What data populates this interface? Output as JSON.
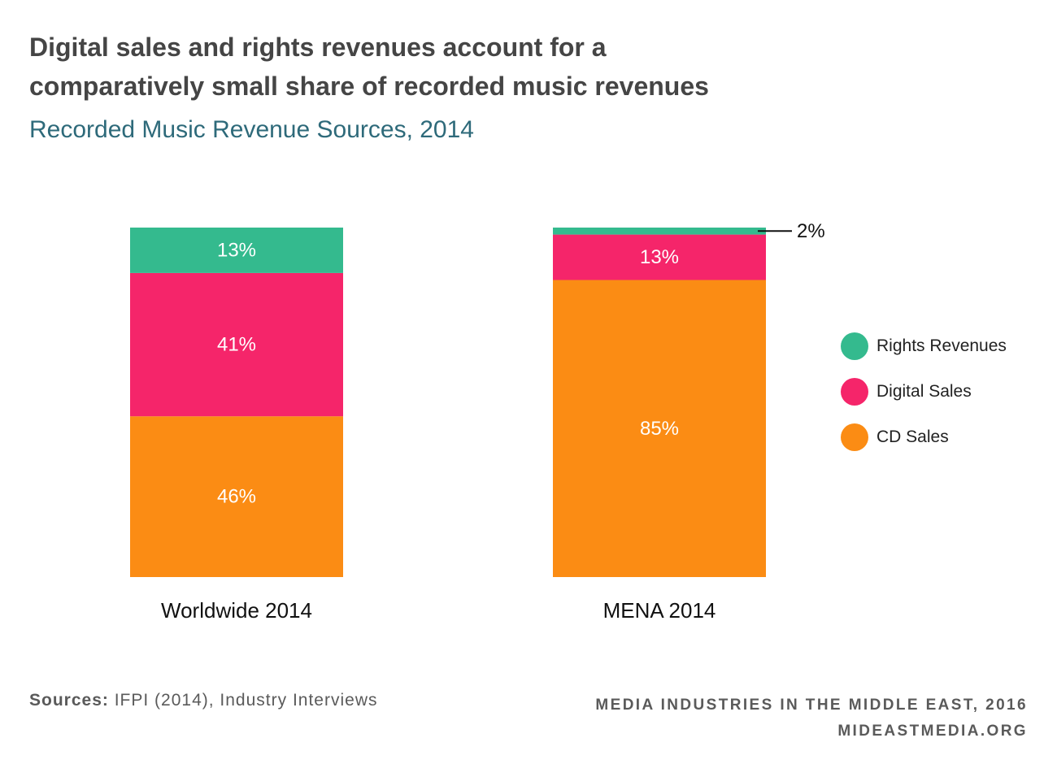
{
  "header": {
    "title_line1": "Digital sales and rights revenues account for a",
    "title_line2": "comparatively small share of recorded music revenues",
    "subtitle": "Recorded Music Revenue Sources, 2014"
  },
  "chart_data": {
    "type": "bar",
    "stacked": true,
    "categories": [
      "Worldwide 2014",
      "MENA 2014"
    ],
    "series": [
      {
        "name": "CD Sales",
        "values": [
          46,
          85
        ],
        "labels": [
          "46%",
          "85%"
        ],
        "color": "#fb8c14"
      },
      {
        "name": "Digital Sales",
        "values": [
          41,
          13
        ],
        "labels": [
          "41%",
          "13%"
        ],
        "color": "#f5256a"
      },
      {
        "name": "Rights Revenues",
        "values": [
          13,
          2
        ],
        "labels": [
          "13%",
          "2%"
        ],
        "color": "#34ba8e"
      }
    ],
    "ylim": [
      0,
      100
    ],
    "grid": false,
    "legend_position": "right",
    "legend_order": [
      "Rights Revenues",
      "Digital Sales",
      "CD Sales"
    ]
  },
  "footer": {
    "source_prefix": "Sources:",
    "source_text": " IFPI (2014), Industry Interviews",
    "credit_line1": "MEDIA INDUSTRIES IN THE MIDDLE EAST, 2016",
    "credit_line2": "MIDEASTMEDIA.ORG"
  }
}
